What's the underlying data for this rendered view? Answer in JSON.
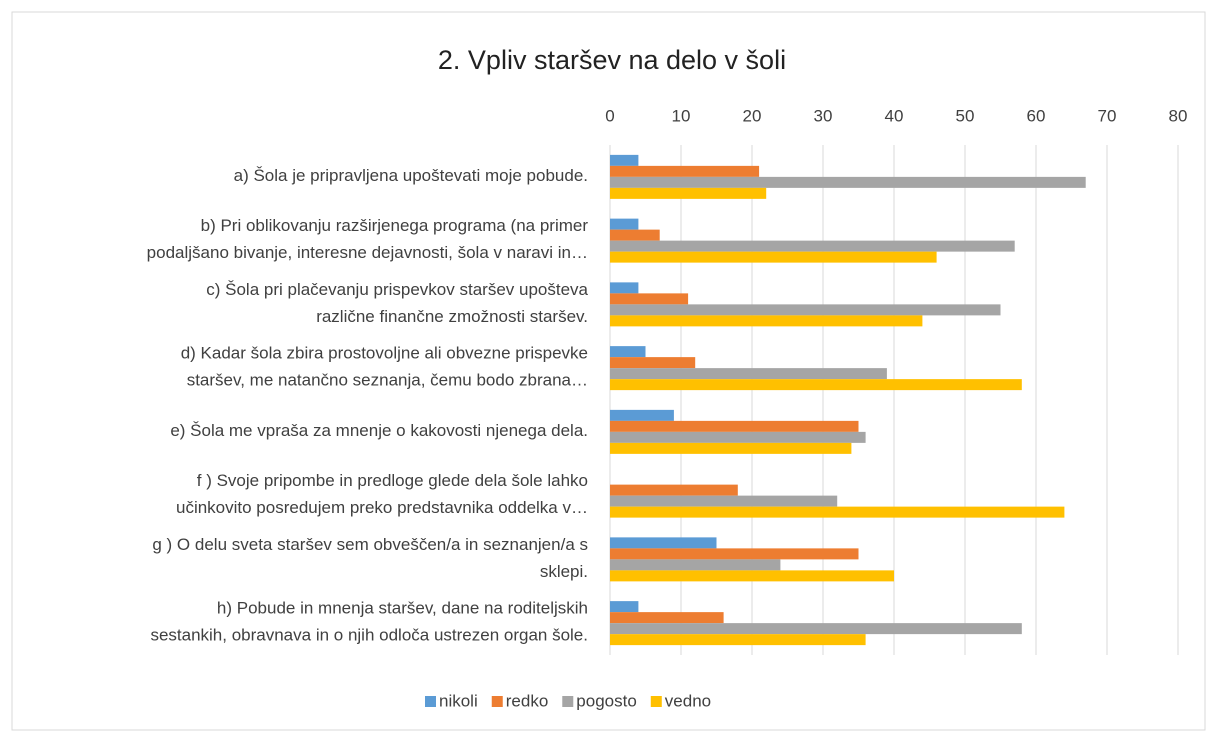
{
  "chart_data": {
    "type": "bar",
    "orientation": "horizontal",
    "title": "2. Vpliv staršev na delo v šoli",
    "categories": [
      "a) Šola je pripravljena upoštevati moje pobude.",
      "b) Pri oblikovanju razširjenega programa (na primer\npodaljšano bivanje, interesne dejavnosti, šola v naravi in…",
      "c) Šola pri plačevanju prispevkov staršev upošteva\nrazlične finančne zmožnosti staršev.",
      "d) Kadar šola zbira prostovoljne ali obvezne prispevke\nstaršev, me natančno seznanja, čemu bodo zbrana…",
      "e) Šola me vpraša za mnenje o kakovosti njenega dela.",
      "f ) Svoje pripombe in predloge glede dela šole lahko\nučinkovito posredujem preko predstavnika oddelka v…",
      "g ) O delu sveta staršev sem obveščen/a in seznanjen/a s\nsklepi.",
      "h) Pobude in mnenja staršev, dane na roditeljskih\nsestankih, obravnava in o njih odloča ustrezen organ šole."
    ],
    "series": [
      {
        "name": "nikoli",
        "color": "#5b9bd5",
        "values": [
          4,
          4,
          4,
          5,
          9,
          0,
          15,
          4
        ]
      },
      {
        "name": "redko",
        "color": "#ed7d31",
        "values": [
          21,
          7,
          11,
          12,
          35,
          18,
          35,
          16
        ]
      },
      {
        "name": "pogosto",
        "color": "#a5a5a5",
        "values": [
          67,
          57,
          55,
          39,
          36,
          32,
          24,
          58
        ]
      },
      {
        "name": "vedno",
        "color": "#ffc000",
        "values": [
          22,
          46,
          44,
          58,
          34,
          64,
          40,
          36
        ]
      }
    ],
    "xlim": [
      0,
      80
    ],
    "xticks": [
      0,
      10,
      20,
      30,
      40,
      50,
      60,
      70,
      80
    ],
    "grid": true,
    "legend": "bottom"
  }
}
